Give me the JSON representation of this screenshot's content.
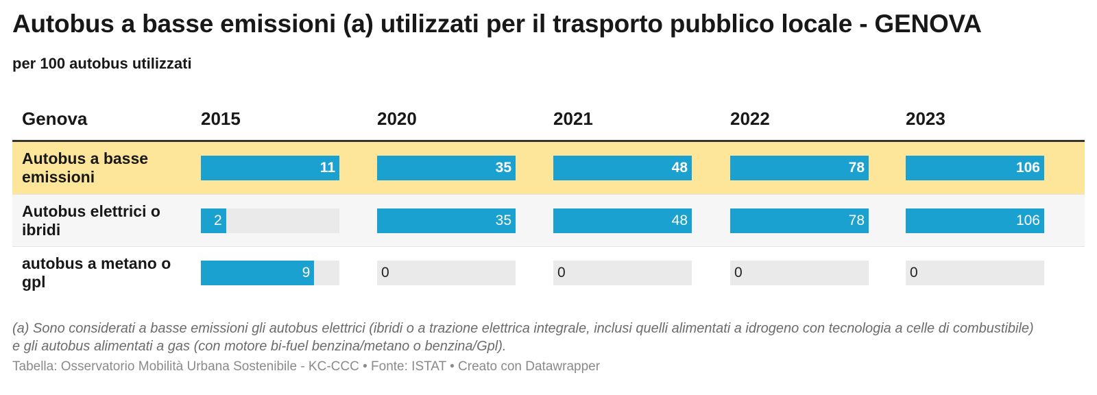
{
  "title": "Autobus a basse emissioni (a) utilizzati per il trasporto pubblico locale - GENOVA",
  "subtitle": "per 100 autobus utilizzati",
  "note": "(a) Sono considerati a basse emissioni gli autobus elettrici (ibridi o a trazione elettrica integrale, inclusi quelli alimentati a idrogeno con tecnologia a celle di combustibile) e gli autobus alimentati a gas (con motore bi-fuel benzina/metano o benzina/Gpl).",
  "footer": "Tabella: Osservatorio Mobilità Urbana Sostenibile - KC-CCC • Fonte: ISTAT • Creato con Datawrapper",
  "colors": {
    "bar": "#1ba1cf",
    "highlight_row": "#fde59a",
    "track": "#eaeaea"
  },
  "chart_data": {
    "type": "table",
    "row_header": "Genova",
    "columns": [
      "2015",
      "2020",
      "2021",
      "2022",
      "2023"
    ],
    "bar_scale_max": 106,
    "rows": [
      {
        "label": "Autobus a basse emissioni",
        "values": [
          11,
          35,
          48,
          78,
          106
        ],
        "highlight": true
      },
      {
        "label": "Autobus elettrici o ibridi",
        "values": [
          2,
          35,
          48,
          78,
          106
        ],
        "highlight": false
      },
      {
        "label": "autobus a metano o gpl",
        "values": [
          9,
          0,
          0,
          0,
          0
        ],
        "highlight": false
      }
    ],
    "bar_scales": [
      {
        "column": "2015",
        "max": 11
      },
      {
        "column": "2020",
        "max": 35
      },
      {
        "column": "2021",
        "max": 48
      },
      {
        "column": "2022",
        "max": 78
      },
      {
        "column": "2023",
        "max": 106
      }
    ]
  }
}
